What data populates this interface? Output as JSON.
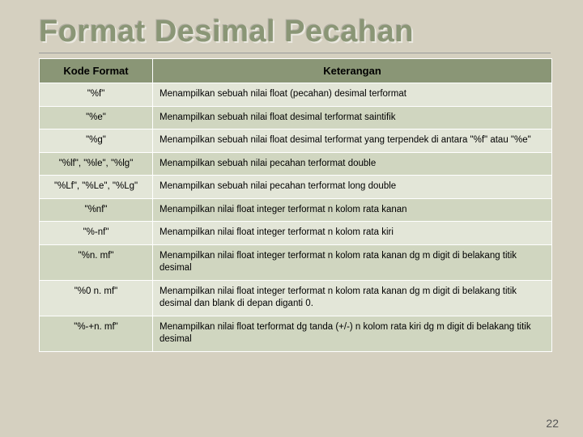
{
  "page": {
    "title": "Format Desimal Pecahan",
    "page_number": "22"
  },
  "table": {
    "headers": {
      "col1": "Kode Format",
      "col2": "Keterangan"
    },
    "rows": [
      {
        "code": "\"%f\"",
        "desc": "Menampilkan sebuah nilai float (pecahan) desimal terformat"
      },
      {
        "code": "\"%e\"",
        "desc": "Menampilkan sebuah nilai float desimal terformat saintifik"
      },
      {
        "code": "\"%g\"",
        "desc": "Menampilkan sebuah nilai float desimal terformat yang terpendek di antara \"%f\" atau \"%e\""
      },
      {
        "code": "\"%lf\", \"%le\", \"%lg\"",
        "desc": "Menampilkan sebuah nilai pecahan terformat double"
      },
      {
        "code": "\"%Lf\", \"%Le\", \"%Lg\"",
        "desc": "Menampilkan sebuah nilai pecahan terformat long double"
      },
      {
        "code": "\"%nf\"",
        "desc": "Menampilkan nilai float integer terformat n kolom rata kanan"
      },
      {
        "code": "\"%-nf\"",
        "desc": "Menampilkan nilai float integer terformat n kolom rata kiri"
      },
      {
        "code": "\"%n. mf\"",
        "desc": "Menampilkan nilai float integer terformat n kolom rata kanan dg m digit di belakang titik desimal"
      },
      {
        "code": "\"%0 n. mf\"",
        "desc": "Menampilkan nilai float integer terformat n kolom rata kanan dg m digit di belakang titik desimal dan blank di depan diganti 0."
      },
      {
        "code": "\"%-+n. mf\"",
        "desc": "Menampilkan nilai float terformat dg tanda (+/-) n kolom rata kiri dg m digit di belakang titik desimal"
      }
    ]
  },
  "colors": {
    "background": "#d5d0c0",
    "title": "#8a9676",
    "header_bg": "#8a9676",
    "row_odd": "#e3e6d8",
    "row_even": "#d0d6c0",
    "border": "#ffffff"
  }
}
